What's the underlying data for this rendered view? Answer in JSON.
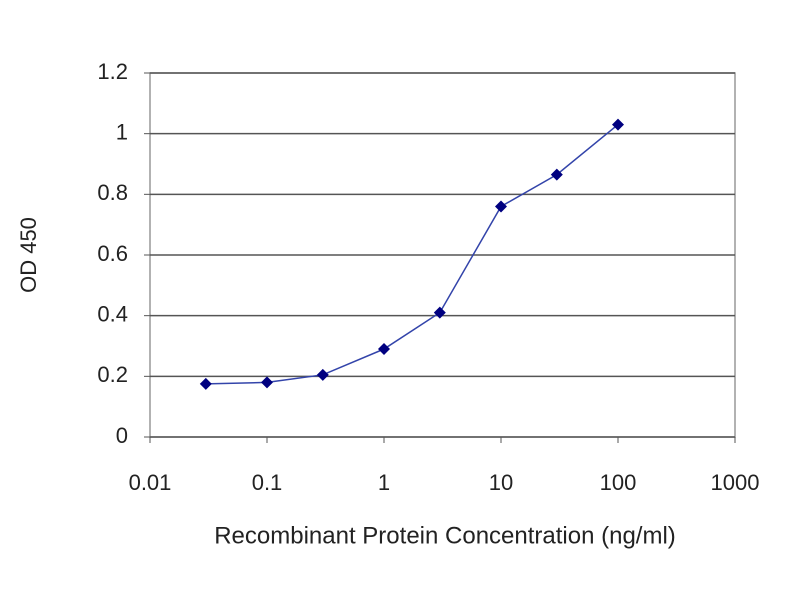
{
  "chart_data": {
    "type": "line",
    "x_label": "Recombinant Protein Concentration (ng/ml)",
    "y_label": "OD 450",
    "x": [
      0.03,
      0.1,
      0.3,
      1,
      3,
      10,
      30,
      100
    ],
    "series": [
      {
        "color": "#000080",
        "values": [
          0.175,
          0.18,
          0.205,
          0.29,
          0.41,
          0.76,
          0.865,
          1.03
        ]
      }
    ],
    "xscale": "log",
    "xlim": [
      0.01,
      1000
    ],
    "xticks": [
      0.01,
      0.1,
      1,
      10,
      100,
      1000
    ],
    "ylim": [
      0,
      1.2
    ],
    "yticks": [
      0,
      0.2,
      0.4,
      0.6,
      0.8,
      1,
      1.2
    ],
    "grid": true
  }
}
